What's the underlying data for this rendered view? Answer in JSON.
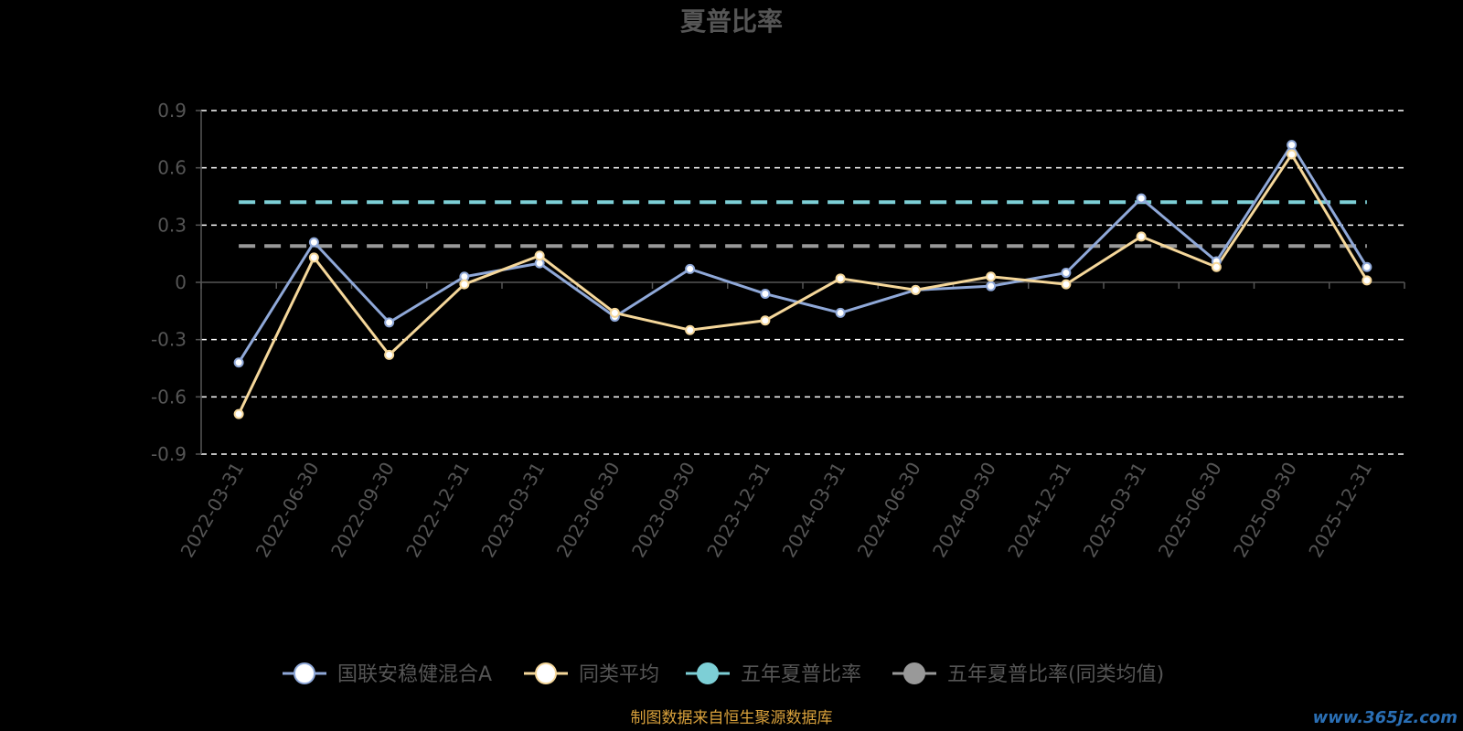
{
  "chart_data": {
    "type": "line",
    "title": "夏普比率",
    "x": [
      "2022-03-31",
      "2022-06-30",
      "2022-09-30",
      "2022-12-31",
      "2023-03-31",
      "2023-06-30",
      "2023-09-30",
      "2023-12-31",
      "2024-03-31",
      "2024-06-30",
      "2024-09-30",
      "2024-12-31",
      "2025-03-31",
      "2025-06-30",
      "2025-09-30",
      "2025-12-31"
    ],
    "y_ticks": [
      "0.9",
      "0.6",
      "0.3",
      "0",
      "-0.3",
      "-0.6",
      "-0.9"
    ],
    "ylim": [
      -0.9,
      0.9
    ],
    "grid": true,
    "legend_position": "bottom",
    "series": [
      {
        "name": "国联安稳健混合A",
        "color": "#8fa8d8",
        "values": [
          -0.42,
          0.21,
          -0.21,
          0.03,
          0.1,
          -0.18,
          0.07,
          -0.06,
          -0.16,
          -0.04,
          -0.02,
          0.05,
          0.44,
          0.11,
          0.72,
          0.08
        ]
      },
      {
        "name": "同类平均",
        "color": "#f5d79a",
        "values": [
          -0.69,
          0.13,
          -0.38,
          -0.01,
          0.14,
          -0.16,
          -0.25,
          -0.2,
          0.02,
          -0.04,
          0.03,
          -0.01,
          0.24,
          0.08,
          0.67,
          0.01
        ]
      }
    ],
    "reference_lines": [
      {
        "name": "五年夏普比率",
        "color": "#7dcfd6",
        "value": 0.42
      },
      {
        "name": "五年夏普比率(同类均值)",
        "color": "#999999",
        "value": 0.19
      }
    ]
  },
  "footer": {
    "source": "制图数据来自恒生聚源数据库",
    "watermark": "www.365jz.com"
  }
}
